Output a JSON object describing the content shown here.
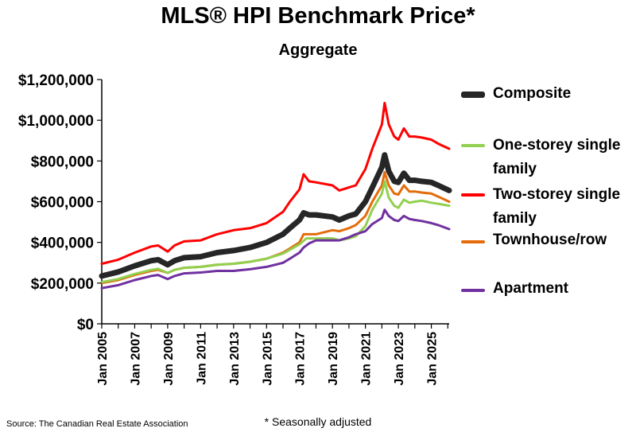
{
  "chart_data": {
    "type": "line",
    "title": "MLS® HPI Benchmark Price*",
    "subtitle": "Aggregate",
    "xlabel": "",
    "ylabel": "",
    "ylim": [
      0,
      1200000
    ],
    "y_ticks": [
      0,
      200000,
      400000,
      600000,
      800000,
      1000000,
      1200000
    ],
    "y_tick_labels": [
      "$0",
      "$200,000",
      "$400,000",
      "$600,000",
      "$800,000",
      "$1,000,000",
      "$1,200,000"
    ],
    "x_range": [
      "2005-01",
      "2026-02"
    ],
    "x_tick_labels": [
      "Jan 2005",
      "Jan 2007",
      "Jan 2009",
      "Jan 2011",
      "Jan 2013",
      "Jan 2015",
      "Jan 2017",
      "Jan 2019",
      "Jan 2021",
      "Jan 2023",
      "Jan 2025"
    ],
    "x_tick_dates": [
      "2005-01",
      "2007-01",
      "2009-01",
      "2011-01",
      "2013-01",
      "2015-01",
      "2017-01",
      "2019-01",
      "2021-01",
      "2023-01",
      "2025-01"
    ],
    "grid": false,
    "legend_position": "right",
    "series": [
      {
        "name": "Composite",
        "color": "#262626",
        "points": [
          [
            "2005-01",
            235000
          ],
          [
            "2006-01",
            255000
          ],
          [
            "2007-01",
            285000
          ],
          [
            "2008-01",
            310000
          ],
          [
            "2008-06",
            315000
          ],
          [
            "2009-01",
            290000
          ],
          [
            "2009-06",
            310000
          ],
          [
            "2010-01",
            325000
          ],
          [
            "2011-01",
            330000
          ],
          [
            "2012-01",
            350000
          ],
          [
            "2013-01",
            360000
          ],
          [
            "2014-01",
            375000
          ],
          [
            "2015-01",
            400000
          ],
          [
            "2016-01",
            440000
          ],
          [
            "2016-06",
            470000
          ],
          [
            "2017-01",
            510000
          ],
          [
            "2017-04",
            545000
          ],
          [
            "2017-08",
            535000
          ],
          [
            "2018-01",
            535000
          ],
          [
            "2019-01",
            525000
          ],
          [
            "2019-06",
            510000
          ],
          [
            "2020-01",
            530000
          ],
          [
            "2020-06",
            540000
          ],
          [
            "2021-01",
            600000
          ],
          [
            "2021-06",
            670000
          ],
          [
            "2022-01",
            770000
          ],
          [
            "2022-03",
            830000
          ],
          [
            "2022-06",
            750000
          ],
          [
            "2022-10",
            700000
          ],
          [
            "2023-01",
            695000
          ],
          [
            "2023-05",
            740000
          ],
          [
            "2023-09",
            705000
          ],
          [
            "2024-01",
            705000
          ],
          [
            "2024-06",
            700000
          ],
          [
            "2025-01",
            695000
          ],
          [
            "2025-06",
            680000
          ],
          [
            "2026-02",
            655000
          ]
        ]
      },
      {
        "name": "One-storey single family",
        "color": "#92d050",
        "points": [
          [
            "2005-01",
            205000
          ],
          [
            "2006-01",
            220000
          ],
          [
            "2007-01",
            245000
          ],
          [
            "2008-01",
            265000
          ],
          [
            "2008-06",
            270000
          ],
          [
            "2009-01",
            250000
          ],
          [
            "2009-06",
            265000
          ],
          [
            "2010-01",
            275000
          ],
          [
            "2011-01",
            280000
          ],
          [
            "2012-01",
            290000
          ],
          [
            "2013-01",
            295000
          ],
          [
            "2014-01",
            305000
          ],
          [
            "2015-01",
            320000
          ],
          [
            "2016-01",
            345000
          ],
          [
            "2017-01",
            390000
          ],
          [
            "2017-06",
            420000
          ],
          [
            "2018-01",
            420000
          ],
          [
            "2019-01",
            420000
          ],
          [
            "2019-06",
            410000
          ],
          [
            "2020-01",
            420000
          ],
          [
            "2020-06",
            430000
          ],
          [
            "2021-01",
            480000
          ],
          [
            "2021-06",
            560000
          ],
          [
            "2022-01",
            640000
          ],
          [
            "2022-03",
            700000
          ],
          [
            "2022-06",
            620000
          ],
          [
            "2022-10",
            580000
          ],
          [
            "2023-01",
            570000
          ],
          [
            "2023-05",
            610000
          ],
          [
            "2023-09",
            595000
          ],
          [
            "2024-01",
            600000
          ],
          [
            "2024-06",
            605000
          ],
          [
            "2025-01",
            595000
          ],
          [
            "2025-06",
            590000
          ],
          [
            "2026-02",
            580000
          ]
        ]
      },
      {
        "name": "Two-storey single family",
        "color": "#ff0000",
        "points": [
          [
            "2005-01",
            295000
          ],
          [
            "2006-01",
            315000
          ],
          [
            "2007-01",
            350000
          ],
          [
            "2008-01",
            380000
          ],
          [
            "2008-06",
            385000
          ],
          [
            "2009-01",
            355000
          ],
          [
            "2009-06",
            385000
          ],
          [
            "2010-01",
            405000
          ],
          [
            "2011-01",
            410000
          ],
          [
            "2012-01",
            440000
          ],
          [
            "2013-01",
            460000
          ],
          [
            "2014-01",
            470000
          ],
          [
            "2015-01",
            495000
          ],
          [
            "2016-01",
            550000
          ],
          [
            "2016-06",
            600000
          ],
          [
            "2017-01",
            660000
          ],
          [
            "2017-04",
            735000
          ],
          [
            "2017-08",
            700000
          ],
          [
            "2018-01",
            695000
          ],
          [
            "2019-01",
            680000
          ],
          [
            "2019-06",
            655000
          ],
          [
            "2020-01",
            670000
          ],
          [
            "2020-06",
            680000
          ],
          [
            "2021-01",
            760000
          ],
          [
            "2021-06",
            860000
          ],
          [
            "2022-01",
            980000
          ],
          [
            "2022-03",
            1085000
          ],
          [
            "2022-06",
            980000
          ],
          [
            "2022-10",
            920000
          ],
          [
            "2023-01",
            905000
          ],
          [
            "2023-05",
            960000
          ],
          [
            "2023-09",
            920000
          ],
          [
            "2024-01",
            920000
          ],
          [
            "2024-06",
            915000
          ],
          [
            "2025-01",
            905000
          ],
          [
            "2025-06",
            885000
          ],
          [
            "2026-02",
            860000
          ]
        ]
      },
      {
        "name": "Townhouse/row",
        "color": "#e46c0a",
        "points": [
          [
            "2005-01",
            200000
          ],
          [
            "2006-01",
            215000
          ],
          [
            "2007-01",
            240000
          ],
          [
            "2008-01",
            260000
          ],
          [
            "2008-06",
            265000
          ],
          [
            "2009-01",
            250000
          ],
          [
            "2009-06",
            265000
          ],
          [
            "2010-01",
            275000
          ],
          [
            "2011-01",
            280000
          ],
          [
            "2012-01",
            290000
          ],
          [
            "2013-01",
            295000
          ],
          [
            "2014-01",
            305000
          ],
          [
            "2015-01",
            320000
          ],
          [
            "2016-01",
            350000
          ],
          [
            "2016-06",
            370000
          ],
          [
            "2017-01",
            400000
          ],
          [
            "2017-04",
            440000
          ],
          [
            "2017-08",
            440000
          ],
          [
            "2018-01",
            440000
          ],
          [
            "2019-01",
            460000
          ],
          [
            "2019-06",
            455000
          ],
          [
            "2020-01",
            470000
          ],
          [
            "2020-06",
            485000
          ],
          [
            "2021-01",
            530000
          ],
          [
            "2021-06",
            600000
          ],
          [
            "2022-01",
            680000
          ],
          [
            "2022-03",
            745000
          ],
          [
            "2022-06",
            680000
          ],
          [
            "2022-10",
            640000
          ],
          [
            "2023-01",
            635000
          ],
          [
            "2023-05",
            680000
          ],
          [
            "2023-09",
            650000
          ],
          [
            "2024-01",
            650000
          ],
          [
            "2024-06",
            645000
          ],
          [
            "2025-01",
            640000
          ],
          [
            "2025-06",
            625000
          ],
          [
            "2026-02",
            600000
          ]
        ]
      },
      {
        "name": "Apartment",
        "color": "#7030a0",
        "points": [
          [
            "2005-01",
            175000
          ],
          [
            "2006-01",
            190000
          ],
          [
            "2007-01",
            215000
          ],
          [
            "2008-01",
            235000
          ],
          [
            "2008-06",
            240000
          ],
          [
            "2009-01",
            220000
          ],
          [
            "2009-06",
            235000
          ],
          [
            "2010-01",
            248000
          ],
          [
            "2011-01",
            252000
          ],
          [
            "2012-01",
            260000
          ],
          [
            "2013-01",
            260000
          ],
          [
            "2014-01",
            268000
          ],
          [
            "2015-01",
            280000
          ],
          [
            "2016-01",
            300000
          ],
          [
            "2016-06",
            320000
          ],
          [
            "2017-01",
            350000
          ],
          [
            "2017-04",
            375000
          ],
          [
            "2017-08",
            395000
          ],
          [
            "2018-01",
            410000
          ],
          [
            "2019-01",
            410000
          ],
          [
            "2019-06",
            410000
          ],
          [
            "2020-01",
            425000
          ],
          [
            "2020-06",
            440000
          ],
          [
            "2021-01",
            455000
          ],
          [
            "2021-06",
            490000
          ],
          [
            "2022-01",
            520000
          ],
          [
            "2022-03",
            560000
          ],
          [
            "2022-06",
            530000
          ],
          [
            "2022-10",
            510000
          ],
          [
            "2023-01",
            505000
          ],
          [
            "2023-05",
            530000
          ],
          [
            "2023-09",
            515000
          ],
          [
            "2024-01",
            510000
          ],
          [
            "2024-06",
            505000
          ],
          [
            "2025-01",
            495000
          ],
          [
            "2025-06",
            485000
          ],
          [
            "2026-02",
            465000
          ]
        ]
      }
    ]
  },
  "legend": {
    "items": [
      "Composite",
      "One-storey single family",
      "Two-storey single family",
      "Townhouse/row",
      "Apartment"
    ]
  },
  "footnote": "* Seasonally adjusted",
  "source": "Source: The Canadian Real Estate Association"
}
